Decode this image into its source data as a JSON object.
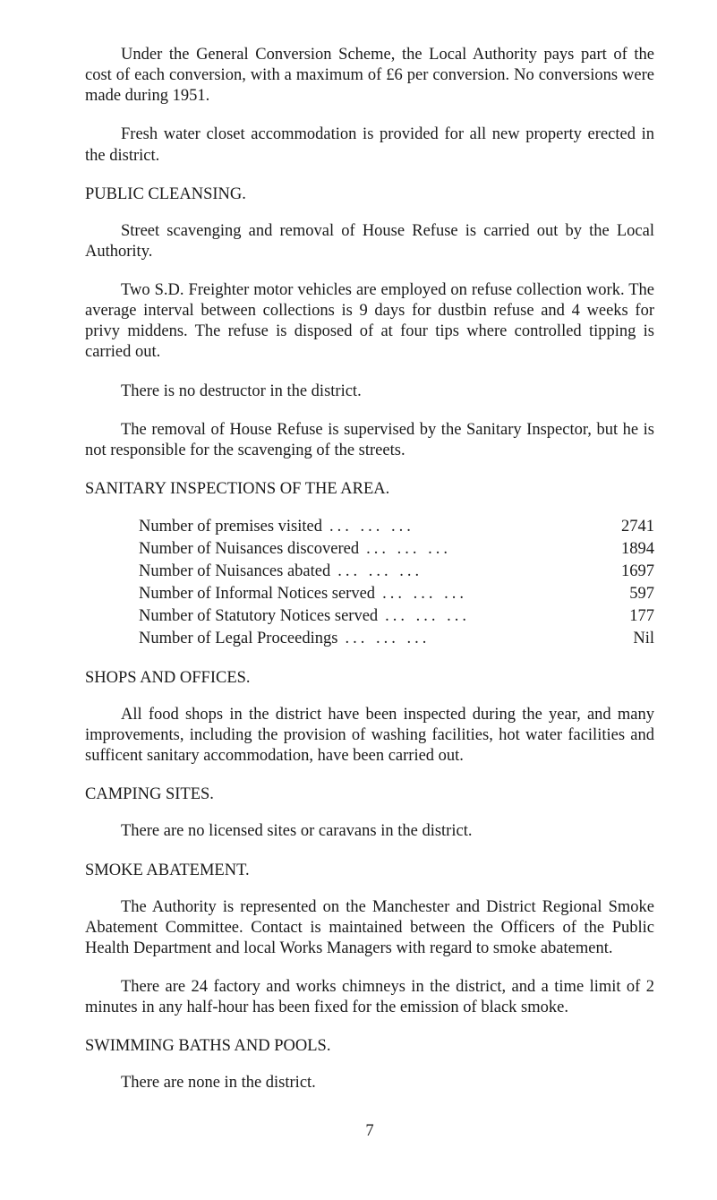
{
  "conversion_para": "Under the General Conversion Scheme, the Local Authority pays part of the cost of each conversion, with a maximum of £6 per conversion. No conversions were made during 1951.",
  "freshwater_para": "Fresh water closet accommodation is provided for all new property erected in the district.",
  "public_cleansing_heading": "PUBLIC CLEANSING.",
  "street_para": "Street scavenging and removal of House Refuse is carried out by the Local Authority.",
  "two_sd_para": "Two S.D. Freighter motor vehicles are employed on refuse collection work. The average interval between collections is 9 days for dustbin refuse and 4 weeks for privy middens. The refuse is disposed of at four tips where controlled tipping is carried out.",
  "destructor_para": "There is no destructor in the district.",
  "removal_para": "The removal of House Refuse is supervised by the Sanitary Inspector, but he is not responsible for the scavenging of the streets.",
  "sanitary_heading": "SANITARY INSPECTIONS OF THE AREA.",
  "inspections": {
    "rows": [
      {
        "label": "Number of premises visited",
        "value": "2741"
      },
      {
        "label": "Number of Nuisances discovered",
        "value": "1894"
      },
      {
        "label": "Number of Nuisances abated",
        "value": "1697"
      },
      {
        "label": "Number of Informal Notices served",
        "value": "597"
      },
      {
        "label": "Number of Statutory Notices served",
        "value": "177"
      },
      {
        "label": "Number of Legal Proceedings",
        "value": "Nil"
      }
    ]
  },
  "shops_heading": "SHOPS AND OFFICES.",
  "shops_para": "All food shops in the district have been inspected during the year, and many improvements, including the provision of washing facilities, hot water facilities and sufficent sanitary accommodation, have been carried out.",
  "camping_heading": "CAMPING SITES.",
  "camping_para": "There are no licensed sites or caravans in the district.",
  "smoke_heading": "SMOKE ABATEMENT.",
  "smoke_para1": "The Authority is represented on the Manchester and District Regional Smoke Abatement Committee. Contact is maintained between the Officers of the Public Health Department and local Works Managers with regard to smoke abatement.",
  "smoke_para2": "There are 24 factory and works chimneys in the district, and a time limit of 2 minutes in any half-hour has been fixed for the emission of black smoke.",
  "swimming_heading": "SWIMMING BATHS AND POOLS.",
  "swimming_para": "There are none in the district.",
  "page_number": "7",
  "dots": "...  ...  ..."
}
